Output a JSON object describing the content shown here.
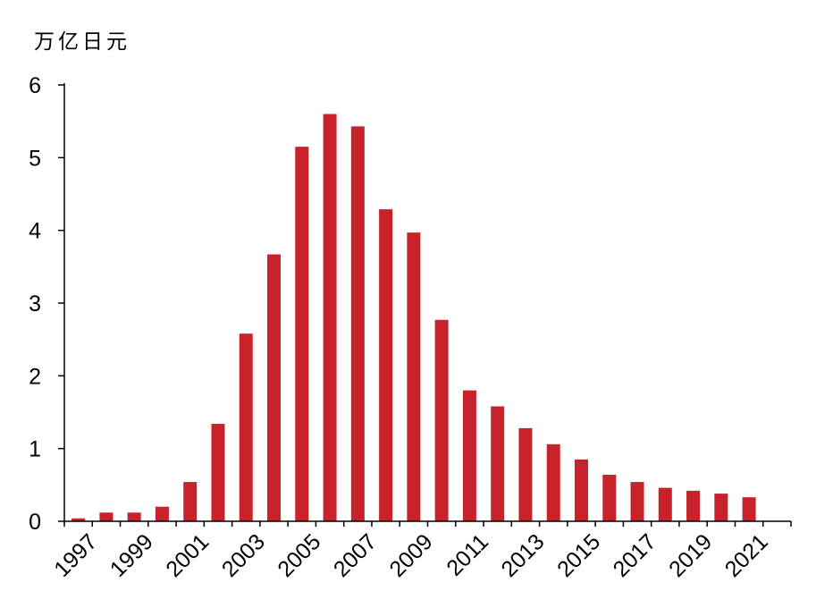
{
  "chart_data": {
    "type": "bar",
    "title": "",
    "ylabel": "万亿日元",
    "xlabel": "",
    "ylim": [
      0,
      6
    ],
    "yticks": [
      0,
      1,
      2,
      3,
      4,
      5,
      6
    ],
    "grid": false,
    "legend": "none",
    "bar_color": "#C8232A",
    "categories": [
      1997,
      1998,
      1999,
      2000,
      2001,
      2002,
      2003,
      2004,
      2005,
      2006,
      2007,
      2008,
      2009,
      2010,
      2011,
      2012,
      2013,
      2014,
      2015,
      2016,
      2017,
      2018,
      2019,
      2020,
      2021,
      2022
    ],
    "xtick_labels": [
      "1997",
      "1999",
      "2001",
      "2003",
      "2005",
      "2007",
      "2009",
      "2011",
      "2013",
      "2015",
      "2017",
      "2019",
      "2021"
    ],
    "values": [
      0.04,
      0.12,
      0.12,
      0.2,
      0.54,
      1.34,
      2.58,
      3.67,
      5.15,
      5.6,
      5.43,
      4.29,
      3.97,
      2.77,
      1.8,
      1.58,
      1.28,
      1.06,
      0.85,
      0.64,
      0.54,
      0.46,
      0.42,
      0.38,
      0.33,
      0.0
    ]
  }
}
